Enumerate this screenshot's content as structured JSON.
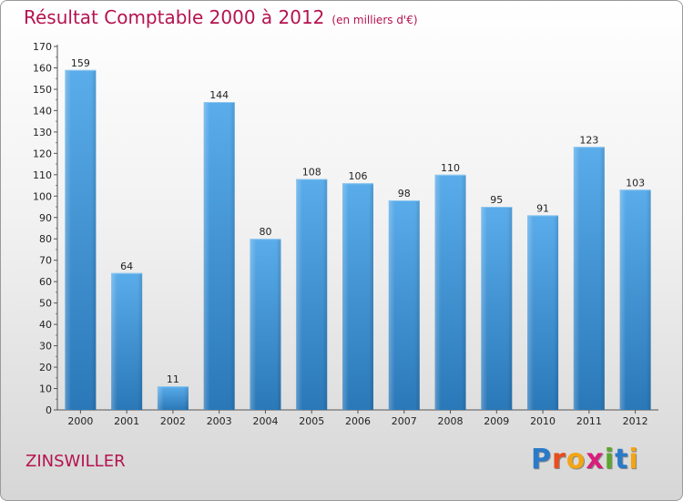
{
  "header": {
    "title": "Résultat Comptable 2000 à 2012",
    "subtitle": "(en milliers d'€)"
  },
  "footer": {
    "commune": "ZINSWILLER",
    "logo_letters": [
      "P",
      "r",
      "o",
      "x",
      "i",
      "t",
      "i"
    ],
    "logo_colors": [
      "#2b7ac8",
      "#e94c1c",
      "#f2a516",
      "#d91e7a",
      "#5aa72b",
      "#2b7ac8",
      "#f2a516"
    ]
  },
  "chart_data": {
    "type": "bar",
    "title": "Résultat Comptable 2000 à 2012",
    "xlabel": "",
    "ylabel": "",
    "categories": [
      "2000",
      "2001",
      "2002",
      "2003",
      "2004",
      "2005",
      "2006",
      "2007",
      "2008",
      "2009",
      "2010",
      "2011",
      "2012"
    ],
    "values": [
      159,
      64,
      11,
      144,
      80,
      108,
      106,
      98,
      110,
      95,
      91,
      123,
      103
    ],
    "ylim": [
      0,
      170
    ],
    "yticks": [
      0,
      10,
      20,
      30,
      40,
      50,
      60,
      70,
      80,
      90,
      100,
      110,
      120,
      130,
      140,
      150,
      160,
      170
    ],
    "grid": false,
    "bar_color": "#4f9fdc"
  }
}
